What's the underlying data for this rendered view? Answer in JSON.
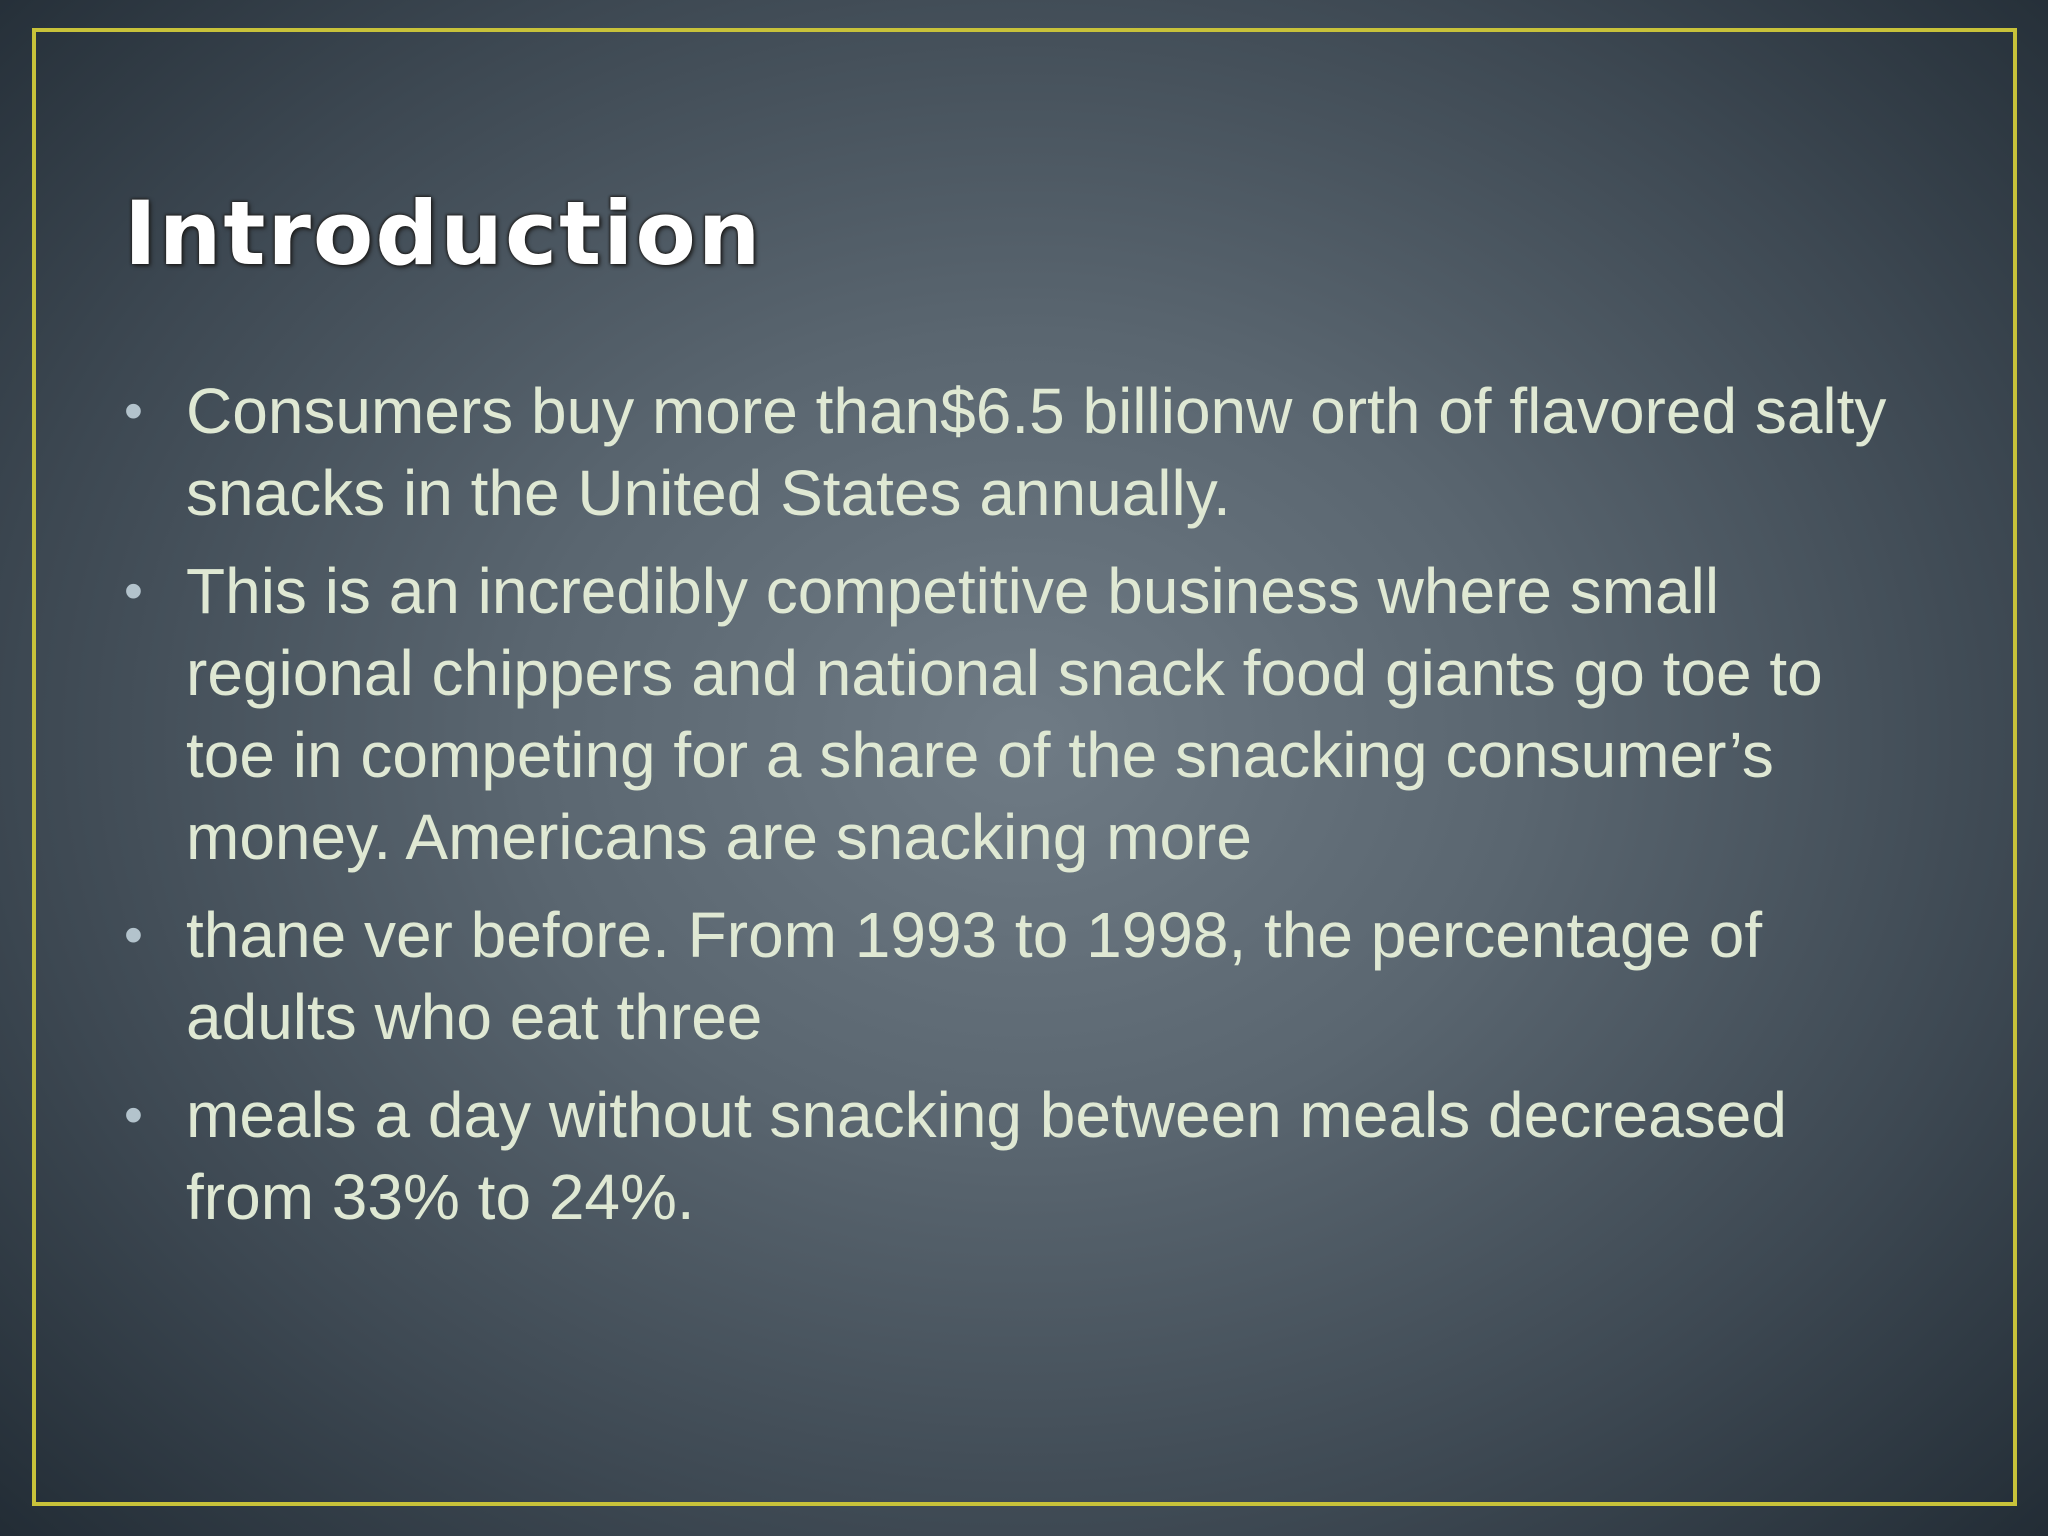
{
  "slide": {
    "title": "Introduction",
    "bullets": [
      "Consumers buy more than$6.5 billionw orth of flavored salty snacks in the United States annually.",
      "This is an incredibly competitive business where small regional chippers and national snack food giants go toe to toe in competing for a share of the snacking consumer’s money. Americans are snacking more",
      "thane ver before. From 1993 to 1998, the percentage of adults who eat three",
      "meals a day without snacking between meals decreased from 33% to 24%."
    ],
    "bullet_symbol": "•"
  },
  "colors": {
    "frame": "#c8c23a",
    "title": "#ffffff",
    "body_text": "#dfe8d3",
    "background_center": "#6f7b85",
    "background_edge": "#222c35"
  }
}
